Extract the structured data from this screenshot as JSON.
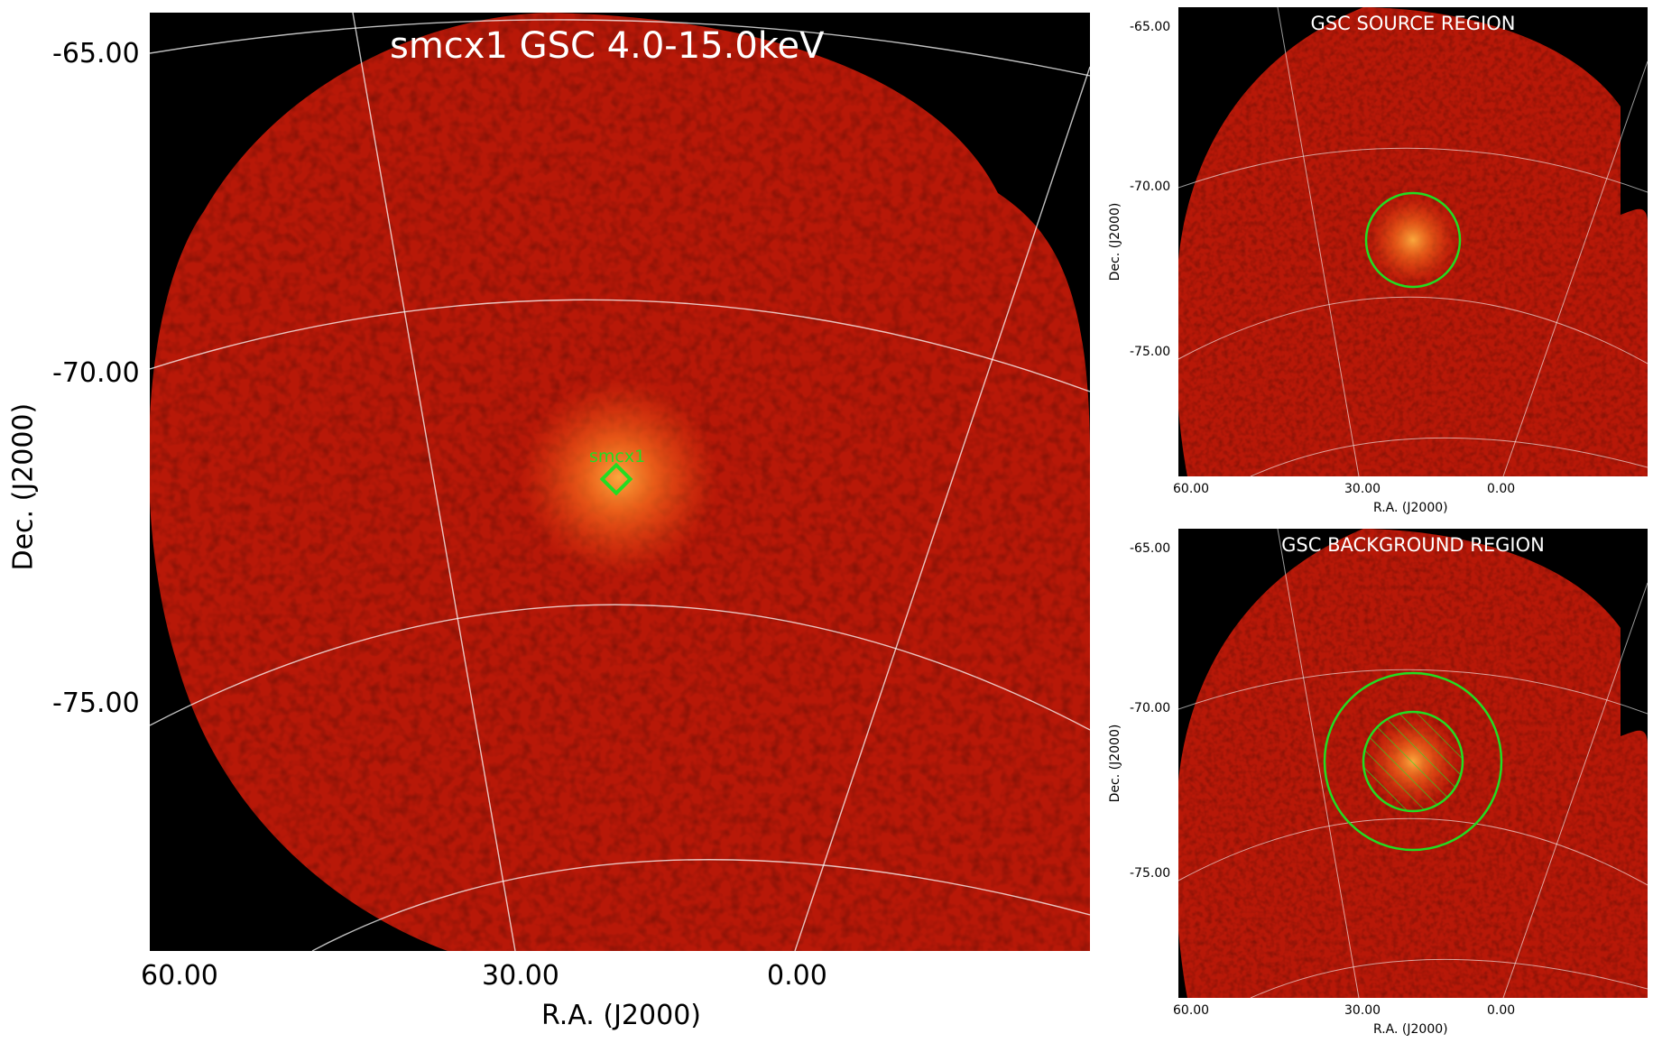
{
  "main_panel": {
    "title": "smcx1 GSC 4.0-15.0keV",
    "source_label": "smcx1",
    "xlabel": "R.A. (J2000)",
    "ylabel": "Dec. (J2000)",
    "x_ticks": [
      "60.00",
      "30.00",
      "0.00"
    ],
    "y_ticks": [
      "-65.00",
      "-70.00",
      "-75.00"
    ]
  },
  "source_panel": {
    "title": "GSC SOURCE REGION",
    "xlabel": "R.A. (J2000)",
    "ylabel": "Dec. (J2000)",
    "x_ticks": [
      "60.00",
      "30.00",
      "0.00"
    ],
    "y_ticks": [
      "-65.00",
      "-70.00",
      "-75.00"
    ]
  },
  "background_panel": {
    "title": "GSC BACKGROUND REGION",
    "xlabel": "R.A. (J2000)",
    "ylabel": "Dec. (J2000)",
    "x_ticks": [
      "60.00",
      "30.00",
      "0.00"
    ],
    "y_ticks": [
      "-65.00",
      "-70.00",
      "-75.00"
    ]
  },
  "colors": {
    "field_red": "#b81808",
    "source_orange": "#ff7a20",
    "region_green": "#22dd22",
    "grid_white": "#ffffff",
    "background_black": "#000000"
  }
}
